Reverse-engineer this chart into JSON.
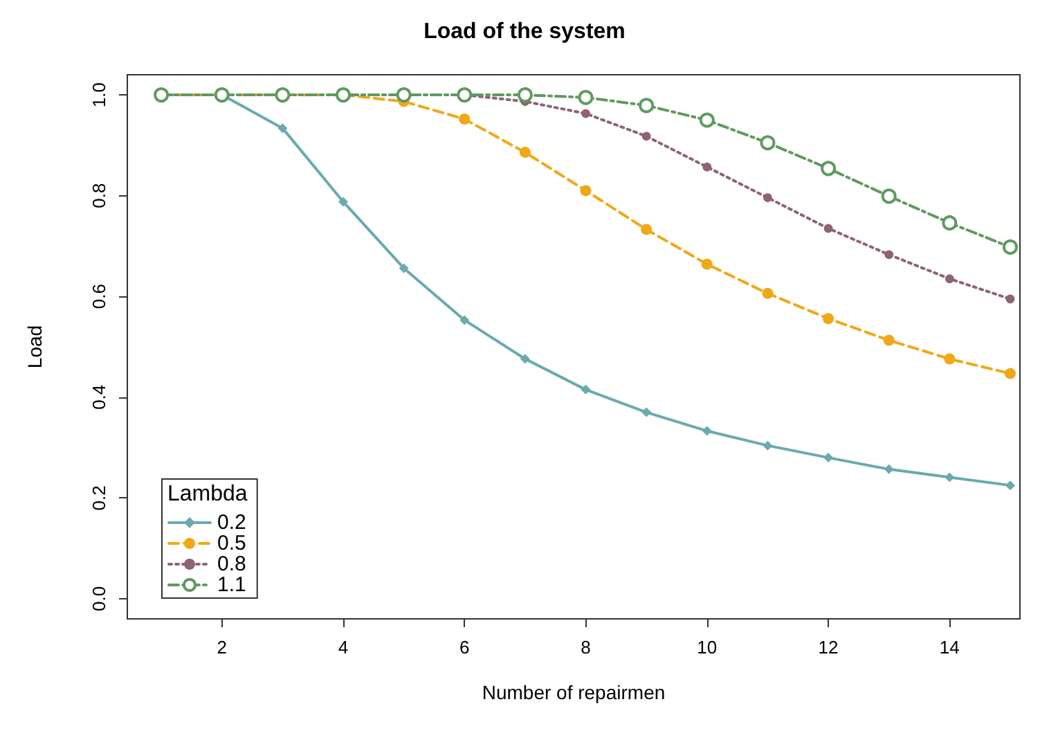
{
  "chart_data": {
    "type": "line",
    "title": "Load of the system",
    "xlabel": "Number of repairmen",
    "ylabel": "Load",
    "legend_title": "Lambda",
    "legend": "bottom left",
    "grid": false,
    "x": [
      1,
      2,
      3,
      4,
      5,
      6,
      7,
      8,
      9,
      10,
      11,
      12,
      13,
      14,
      15
    ],
    "xlim": [
      0.44,
      15.16
    ],
    "xticks": [
      2,
      4,
      6,
      8,
      10,
      12,
      14
    ],
    "ylim": [
      -0.04,
      1.04
    ],
    "yticks": [
      {
        "value": 0,
        "label": "0.0"
      },
      0.2,
      0.4,
      0.6,
      0.8,
      {
        "value": 1,
        "label": "1.0"
      }
    ],
    "series": [
      {
        "name": "0.2",
        "color": "#6aaaaf",
        "marker": "diamond",
        "line_style": "solid",
        "values": [
          1.0,
          1.0,
          0.934,
          0.788,
          0.656,
          0.553,
          0.476,
          0.415,
          0.37,
          0.333,
          0.304,
          0.28,
          0.257,
          0.241,
          0.225
        ]
      },
      {
        "name": "0.5",
        "color": "#f0a818",
        "marker": "circle",
        "line_style": "dashed",
        "values": [
          1.0,
          1.0,
          1.0,
          1.0,
          0.987,
          0.952,
          0.886,
          0.81,
          0.733,
          0.664,
          0.606,
          0.556,
          0.513,
          0.476,
          0.447
        ]
      },
      {
        "name": "0.8",
        "color": "#8e6470",
        "marker": "circle",
        "line_style": "dotted",
        "values": [
          1.0,
          1.0,
          1.0,
          1.0,
          1.0,
          1.0,
          0.987,
          0.963,
          0.918,
          0.857,
          0.796,
          0.735,
          0.683,
          0.635,
          0.595
        ]
      },
      {
        "name": "1.1",
        "color": "#5f9a5f",
        "marker": "open circle",
        "line_style": "dashdot",
        "values": [
          1.0,
          1.0,
          1.0,
          1.0,
          1.0,
          1.0,
          1.0,
          0.995,
          0.979,
          0.95,
          0.905,
          0.854,
          0.799,
          0.746,
          0.698
        ]
      }
    ]
  }
}
